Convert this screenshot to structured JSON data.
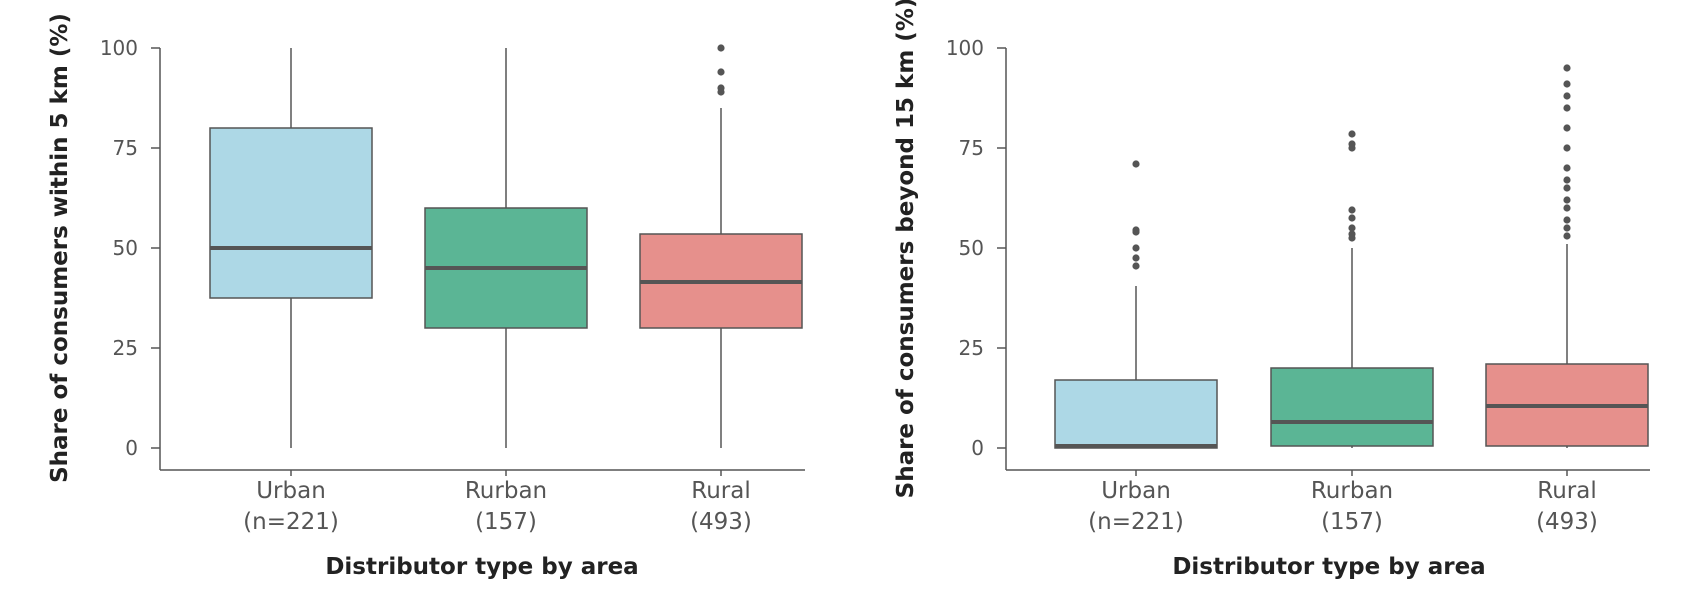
{
  "chart_data": [
    {
      "type": "box",
      "xlabel": "Distributor type by area",
      "ylabel": "Share of consumers within 5 km (%)",
      "ylim": [
        0,
        100
      ],
      "yticks": [
        0,
        25,
        50,
        75,
        100
      ],
      "grid": false,
      "categories": [
        {
          "name": "Urban",
          "count_label": "(n=221)",
          "color": "#ADD8E6",
          "whisker_low": 0,
          "q1": 37.5,
          "median": 50,
          "q3": 80,
          "whisker_high": 100,
          "outliers": []
        },
        {
          "name": "Rurban",
          "count_label": "(157)",
          "color": "#5BB595",
          "whisker_low": 0,
          "q1": 30,
          "median": 45,
          "q3": 60,
          "whisker_high": 100,
          "outliers": []
        },
        {
          "name": "Rural",
          "count_label": "(493)",
          "color": "#E6908C",
          "whisker_low": 0,
          "q1": 30,
          "median": 41.5,
          "q3": 53.5,
          "whisker_high": 85,
          "outliers": [
            89,
            90,
            94,
            100
          ]
        }
      ]
    },
    {
      "type": "box",
      "xlabel": "Distributor type by area",
      "ylabel": "Share of consumers beyond 15 km (%)",
      "ylim": [
        0,
        100
      ],
      "yticks": [
        0,
        25,
        50,
        75,
        100
      ],
      "grid": false,
      "categories": [
        {
          "name": "Urban",
          "count_label": "(n=221)",
          "color": "#ADD8E6",
          "whisker_low": 0,
          "q1": 0,
          "median": 0.5,
          "q3": 17,
          "whisker_high": 40.5,
          "outliers": [
            45.5,
            47.5,
            50,
            54,
            54.5,
            71
          ]
        },
        {
          "name": "Rurban",
          "count_label": "(157)",
          "color": "#5BB595",
          "whisker_low": 0,
          "q1": 0.5,
          "median": 6.5,
          "q3": 20,
          "whisker_high": 50,
          "outliers": [
            52.5,
            53.5,
            55,
            57.5,
            59.5,
            75,
            76,
            78.5
          ]
        },
        {
          "name": "Rural",
          "count_label": "(493)",
          "color": "#E6908C",
          "whisker_low": 0,
          "q1": 0.5,
          "median": 10.5,
          "q3": 21,
          "whisker_high": 51,
          "outliers": [
            53,
            55,
            57,
            60,
            62,
            65,
            67,
            70,
            75,
            80,
            85,
            88,
            91,
            95
          ]
        }
      ]
    }
  ]
}
